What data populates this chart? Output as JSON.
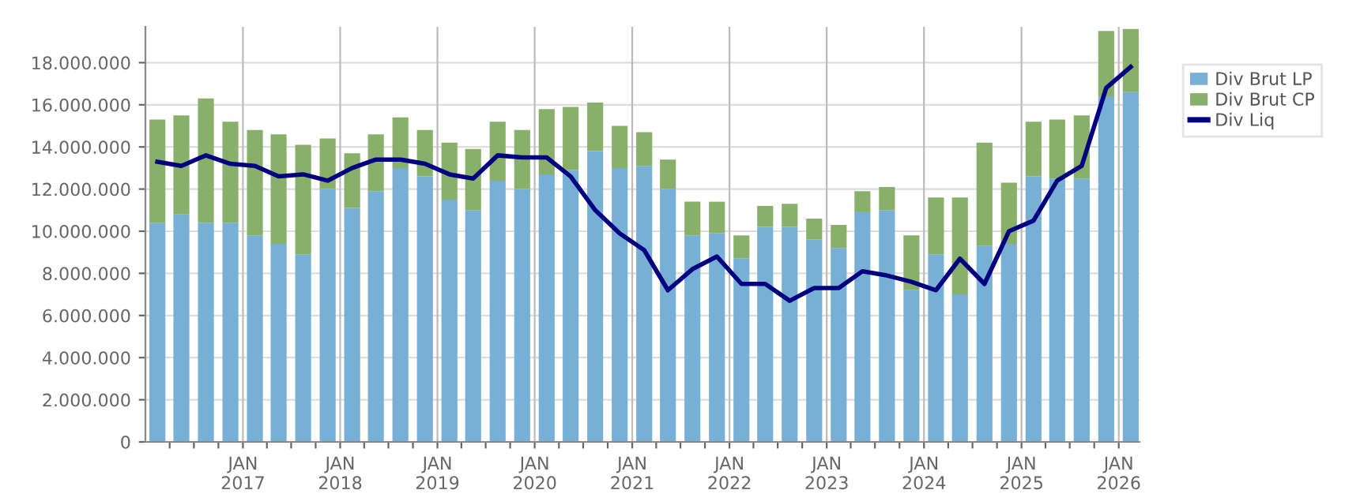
{
  "chart_data": {
    "type": "bar",
    "stacked": true,
    "x": [
      "2016-02-15",
      "2016-05-15",
      "2016-08-15",
      "2016-11-15",
      "2017-02-15",
      "2017-05-15",
      "2017-08-15",
      "2017-11-15",
      "2018-02-15",
      "2018-05-15",
      "2018-08-15",
      "2018-11-15",
      "2019-02-15",
      "2019-05-15",
      "2019-08-15",
      "2019-11-15",
      "2020-02-15",
      "2020-05-15",
      "2020-08-15",
      "2020-11-15",
      "2021-02-15",
      "2021-05-15",
      "2021-08-15",
      "2021-11-15",
      "2022-02-15",
      "2022-05-15",
      "2022-08-15",
      "2022-11-15",
      "2023-02-15",
      "2023-05-15",
      "2023-08-15",
      "2023-11-15",
      "2024-02-15",
      "2024-05-15",
      "2024-08-15",
      "2024-11-15",
      "2025-02-15",
      "2025-05-15",
      "2025-08-15",
      "2025-11-15",
      "2026-02-15"
    ],
    "series": [
      {
        "name": "Div Brut LP",
        "color": "#77b0d4",
        "values": [
          10400000,
          10800000,
          10400000,
          10400000,
          9800000,
          9400000,
          8900000,
          12000000,
          11100000,
          11900000,
          13000000,
          12600000,
          11500000,
          11000000,
          12400000,
          12000000,
          12700000,
          12900000,
          13800000,
          13000000,
          13100000,
          12000000,
          9800000,
          9900000,
          8700000,
          10200000,
          10200000,
          9600000,
          9200000,
          10900000,
          11000000,
          7200000,
          8900000,
          7000000,
          9300000,
          9400000,
          12600000,
          12500000,
          12500000,
          16400000,
          16600000
        ]
      },
      {
        "name": "Div Brut CP",
        "color": "#88b06a",
        "values": [
          4900000,
          4700000,
          5900000,
          4800000,
          5000000,
          5200000,
          5200000,
          2400000,
          2600000,
          2700000,
          2400000,
          2200000,
          2700000,
          2900000,
          2800000,
          2800000,
          3100000,
          3000000,
          2300000,
          2000000,
          1600000,
          1400000,
          1600000,
          1500000,
          1100000,
          1000000,
          1100000,
          1000000,
          1100000,
          1000000,
          1100000,
          2600000,
          2700000,
          4600000,
          4900000,
          2900000,
          2600000,
          2800000,
          3000000,
          3100000,
          3000000
        ]
      },
      {
        "name": "Div Liq",
        "type": "line",
        "color": "#000080",
        "values": [
          13300000,
          13100000,
          13600000,
          13200000,
          13100000,
          12600000,
          12700000,
          12400000,
          13000000,
          13400000,
          13400000,
          13200000,
          12700000,
          12500000,
          13600000,
          13500000,
          13500000,
          12600000,
          11000000,
          9900000,
          9100000,
          7200000,
          8200000,
          8800000,
          7500000,
          7500000,
          6700000,
          7300000,
          7300000,
          8100000,
          7900000,
          7600000,
          7200000,
          8700000,
          7500000,
          10000000,
          10500000,
          12400000,
          13100000,
          16800000,
          17800000
        ]
      }
    ],
    "xlim": [
      "2016-01-01",
      "2026-03-20"
    ],
    "xticks": [
      {
        "value": "2016-04-01",
        "label": null
      },
      {
        "value": "2016-07-01",
        "label": null
      },
      {
        "value": "2016-10-01",
        "label": null
      },
      {
        "value": "2017-01-01",
        "label": "JAN\n2017"
      },
      {
        "value": "2017-04-01",
        "label": null
      },
      {
        "value": "2017-07-01",
        "label": null
      },
      {
        "value": "2017-10-01",
        "label": null
      },
      {
        "value": "2018-01-01",
        "label": "JAN\n2018"
      },
      {
        "value": "2018-04-01",
        "label": null
      },
      {
        "value": "2018-07-01",
        "label": null
      },
      {
        "value": "2018-10-01",
        "label": null
      },
      {
        "value": "2019-01-01",
        "label": "JAN\n2019"
      },
      {
        "value": "2019-04-01",
        "label": null
      },
      {
        "value": "2019-07-01",
        "label": null
      },
      {
        "value": "2019-10-01",
        "label": null
      },
      {
        "value": "2020-01-01",
        "label": "JAN\n2020"
      },
      {
        "value": "2020-04-01",
        "label": null
      },
      {
        "value": "2020-07-01",
        "label": null
      },
      {
        "value": "2020-10-01",
        "label": null
      },
      {
        "value": "2021-01-01",
        "label": "JAN\n2021"
      },
      {
        "value": "2021-04-01",
        "label": null
      },
      {
        "value": "2021-07-01",
        "label": null
      },
      {
        "value": "2021-10-01",
        "label": null
      },
      {
        "value": "2022-01-01",
        "label": "JAN\n2022"
      },
      {
        "value": "2022-04-01",
        "label": null
      },
      {
        "value": "2022-07-01",
        "label": null
      },
      {
        "value": "2022-10-01",
        "label": null
      },
      {
        "value": "2023-01-01",
        "label": "JAN\n2023"
      },
      {
        "value": "2023-04-01",
        "label": null
      },
      {
        "value": "2023-07-01",
        "label": null
      },
      {
        "value": "2023-10-01",
        "label": null
      },
      {
        "value": "2024-01-01",
        "label": "JAN\n2024"
      },
      {
        "value": "2024-04-01",
        "label": null
      },
      {
        "value": "2024-07-01",
        "label": null
      },
      {
        "value": "2024-10-01",
        "label": null
      },
      {
        "value": "2025-01-01",
        "label": "JAN\n2025"
      },
      {
        "value": "2025-04-01",
        "label": null
      },
      {
        "value": "2025-07-01",
        "label": null
      },
      {
        "value": "2025-10-01",
        "label": null
      },
      {
        "value": "2026-01-01",
        "label": "JAN\n2026"
      }
    ],
    "ylim": [
      0,
      19700000
    ],
    "yticks": [
      {
        "value": 0,
        "label": "0"
      },
      {
        "value": 2000000,
        "label": "2.000.000"
      },
      {
        "value": 4000000,
        "label": "4.000.000"
      },
      {
        "value": 6000000,
        "label": "6.000.000"
      },
      {
        "value": 8000000,
        "label": "8.000.000"
      },
      {
        "value": 10000000,
        "label": "10.000.000"
      },
      {
        "value": 12000000,
        "label": "12.000.000"
      },
      {
        "value": 14000000,
        "label": "14.000.000"
      },
      {
        "value": 16000000,
        "label": "16.000.000"
      },
      {
        "value": 18000000,
        "label": "18.000.000"
      }
    ],
    "grid": true,
    "legend": "top right",
    "marker": "none",
    "line_style": "solid"
  }
}
